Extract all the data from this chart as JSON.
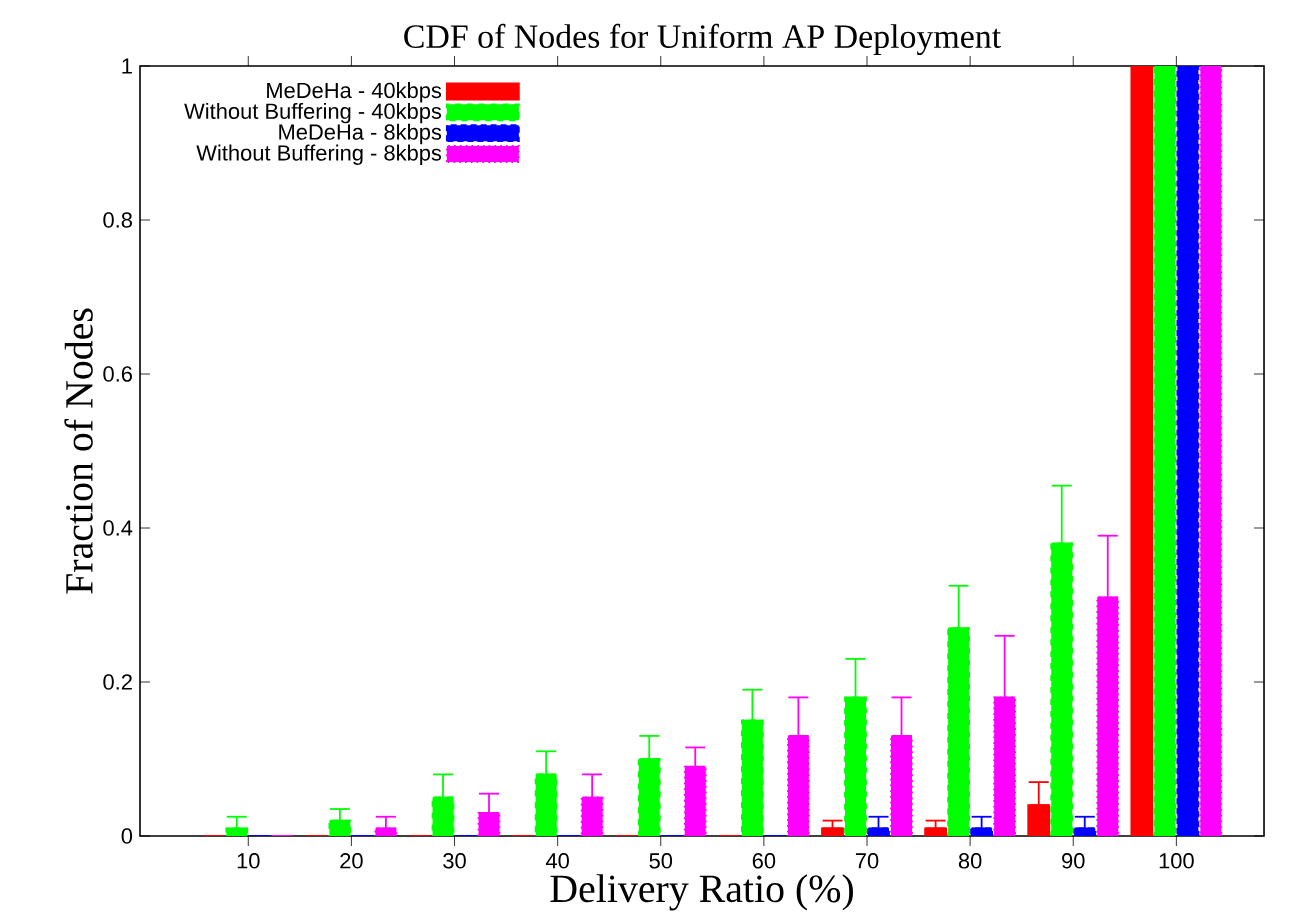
{
  "chart_data": {
    "type": "bar",
    "title": "CDF of Nodes for Uniform AP Deployment",
    "xlabel": "Delivery Ratio (%)",
    "ylabel": "Fraction of Nodes",
    "categories": [
      "10",
      "20",
      "30",
      "40",
      "50",
      "60",
      "70",
      "80",
      "90",
      "100"
    ],
    "series": [
      {
        "name": "MeDeHa - 40kbps",
        "color": "#ff0000",
        "values": [
          0,
          0,
          0,
          0,
          0,
          0,
          0.01,
          0.01,
          0.04,
          1
        ],
        "errors": [
          null,
          null,
          null,
          null,
          null,
          null,
          [
            0.01,
            0.02
          ],
          [
            0.01,
            0.02
          ],
          [
            0.04,
            0.07
          ],
          null
        ]
      },
      {
        "name": "Without Buffering - 40kbps",
        "color": "#00ff00",
        "values": [
          0.01,
          0.02,
          0.05,
          0.08,
          0.1,
          0.15,
          0.18,
          0.27,
          0.38,
          1
        ],
        "errors": [
          [
            0.01,
            0.025
          ],
          [
            0.02,
            0.035
          ],
          [
            0.05,
            0.08
          ],
          [
            0.08,
            0.11
          ],
          [
            0.1,
            0.13
          ],
          [
            0.15,
            0.19
          ],
          [
            0.18,
            0.23
          ],
          [
            0.27,
            0.325
          ],
          [
            0.38,
            0.455
          ],
          null
        ]
      },
      {
        "name": "MeDeHa - 8kbps",
        "color": "#0000ff",
        "values": [
          0,
          0,
          0,
          0,
          0,
          0,
          0.01,
          0.01,
          0.01,
          1
        ],
        "errors": [
          null,
          null,
          null,
          null,
          null,
          null,
          [
            0.01,
            0.025
          ],
          [
            0.01,
            0.025
          ],
          [
            0.01,
            0.025
          ],
          null
        ]
      },
      {
        "name": "Without Buffering - 8kbps",
        "color": "#ff00ff",
        "values": [
          0,
          0.01,
          0.03,
          0.05,
          0.09,
          0.13,
          0.13,
          0.18,
          0.31,
          1
        ],
        "errors": [
          null,
          [
            0.01,
            0.025
          ],
          [
            0.03,
            0.055
          ],
          [
            0.05,
            0.08
          ],
          [
            0.09,
            0.115
          ],
          [
            0.13,
            0.18
          ],
          [
            0.13,
            0.18
          ],
          [
            0.18,
            0.26
          ],
          [
            0.31,
            0.39
          ],
          null
        ]
      }
    ],
    "ylim": [
      0,
      1
    ],
    "yticks": [
      0,
      0.2,
      0.4,
      0.6,
      0.8,
      1
    ],
    "grid": false,
    "legend": "top left"
  }
}
